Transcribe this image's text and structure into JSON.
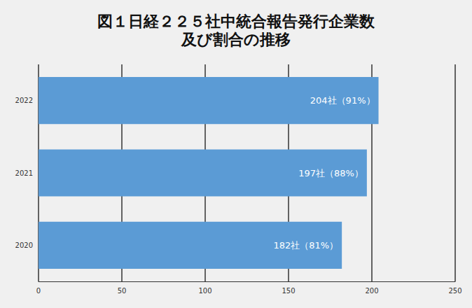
{
  "chart_data": {
    "type": "bar",
    "orientation": "horizontal",
    "title": "図１日経２２５社中統合報告発行企業数\n及び割合の推移",
    "categories": [
      "2020",
      "2021",
      "2022"
    ],
    "values": [
      182,
      197,
      204
    ],
    "value_labels": [
      "182社（81%）",
      "197社（88%）",
      "204社（91%）"
    ],
    "data_labels": true,
    "color": "#5b9bd5",
    "xlim": [
      0,
      250
    ],
    "xticks": [
      0,
      50,
      100,
      150,
      200,
      250
    ],
    "grid": true
  }
}
